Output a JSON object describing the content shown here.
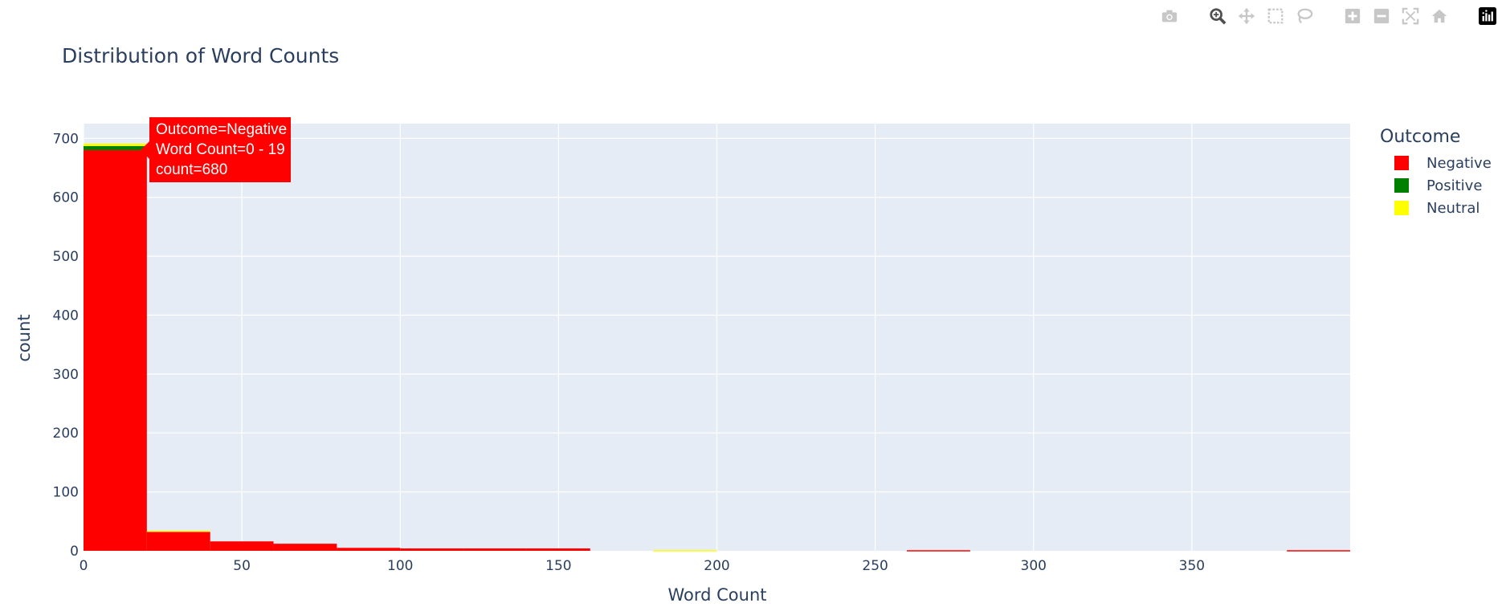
{
  "chart_data": {
    "type": "bar",
    "stacked": true,
    "title": "Distribution of Word Counts",
    "xlabel": "Word Count",
    "ylabel": "count",
    "xlim": [
      0,
      400
    ],
    "ylim": [
      0,
      725
    ],
    "bin_width": 20,
    "xticks": [
      0,
      50,
      100,
      150,
      200,
      250,
      300,
      350
    ],
    "yticks": [
      0,
      100,
      200,
      300,
      400,
      500,
      600,
      700
    ],
    "bins": [
      0,
      20,
      40,
      60,
      80,
      100,
      120,
      140,
      160,
      180,
      200,
      220,
      240,
      260,
      280,
      300,
      320,
      340,
      360,
      380
    ],
    "series": [
      {
        "name": "Negative",
        "color": "#ff0000",
        "values": [
          680,
          32,
          16,
          12,
          5,
          4,
          4,
          4,
          0,
          0,
          0,
          0,
          0,
          1,
          0,
          0,
          0,
          0,
          0,
          1
        ]
      },
      {
        "name": "Positive",
        "color": "#008000",
        "values": [
          7,
          0,
          0,
          0,
          0,
          0,
          0,
          0,
          0,
          0,
          0,
          0,
          0,
          0,
          0,
          0,
          0,
          0,
          0,
          0
        ]
      },
      {
        "name": "Neutral",
        "color": "#ffff00",
        "values": [
          4,
          2,
          0,
          0,
          0,
          0,
          0,
          0,
          0,
          1,
          0,
          0,
          0,
          0,
          0,
          0,
          0,
          0,
          0,
          0
        ]
      }
    ],
    "legend_title": "Outcome",
    "legend_position": "right",
    "grid": true
  },
  "tooltip": {
    "line1": "Outcome=Negative",
    "line2": "Word Count=0 - 19",
    "line3": "count=680"
  },
  "modebar": {
    "buttons": [
      "camera-icon",
      "zoom-icon",
      "pan-icon",
      "box-select-icon",
      "lasso-icon",
      "zoom-in-icon",
      "zoom-out-icon",
      "autoscale-icon",
      "reset-axes-icon",
      "plotly-logo-icon"
    ]
  }
}
